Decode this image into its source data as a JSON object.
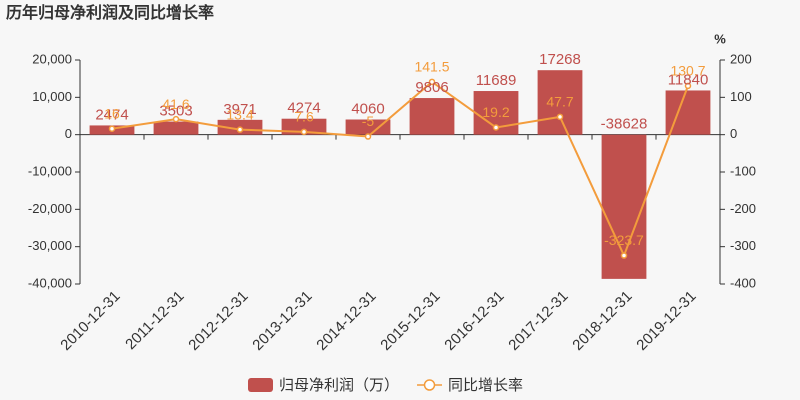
{
  "chart_data": {
    "type": "bar-line",
    "title": "历年归母净利润及同比增长率",
    "y2_label": "%",
    "categories": [
      "2010-12-31",
      "2011-12-31",
      "2012-12-31",
      "2013-12-31",
      "2014-12-31",
      "2015-12-31",
      "2016-12-31",
      "2017-12-31",
      "2018-12-31",
      "2019-12-31"
    ],
    "series": [
      {
        "name": "归母净利润（万）",
        "type": "bar",
        "color": "#c0504d",
        "axis": "y",
        "values": [
          2474,
          3503,
          3971,
          4274,
          4060,
          9806,
          11689,
          17268,
          -38628,
          11840
        ]
      },
      {
        "name": "同比增长率",
        "type": "line",
        "color": "#f39c3c",
        "axis": "y2",
        "values": [
          16,
          41.6,
          13.4,
          7.6,
          -5,
          141.5,
          19.2,
          47.7,
          -323.7,
          130.7
        ]
      }
    ],
    "ylim": [
      -40000,
      20000
    ],
    "yticks": [
      {
        "value": -40000,
        "label": "-40,000"
      },
      {
        "value": -30000,
        "label": "-30,000"
      },
      {
        "value": -20000,
        "label": "-20,000"
      },
      {
        "value": -10000,
        "label": "-10,000"
      },
      0,
      {
        "value": 10000,
        "label": "10,000"
      },
      {
        "value": 20000,
        "label": "20,000"
      }
    ],
    "y2lim": [
      -400,
      200
    ],
    "y2ticks": [
      -400,
      -300,
      -200,
      -100,
      0,
      100,
      200
    ],
    "grid": false,
    "legend": "bottom"
  }
}
